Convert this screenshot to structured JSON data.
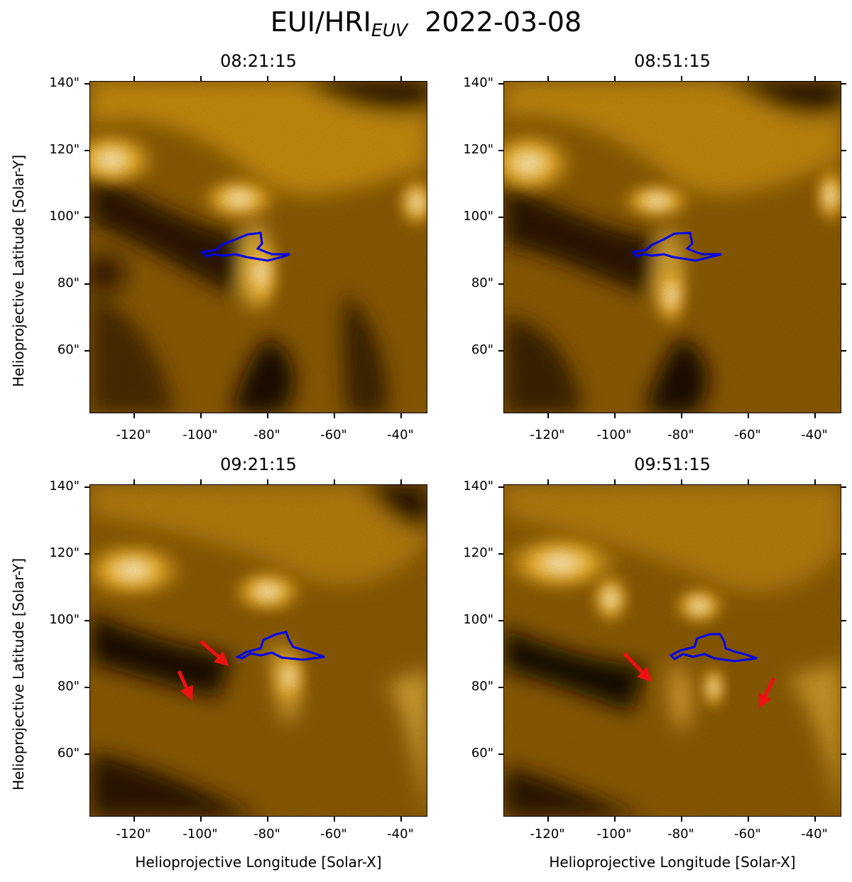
{
  "figure": {
    "title_main": "EUI/HRI",
    "title_sub": "EUV",
    "title_date": "2022-03-08",
    "xlabel": "Helioprojective Longitude [Solar-X]",
    "ylabel": "Helioprojective Latitude [Solar-Y]",
    "x_ticks": [
      "-120\"",
      "-100\"",
      "-80\"",
      "-60\"",
      "-40\""
    ],
    "y_ticks": [
      "140\"",
      "120\"",
      "100\"",
      "80\"",
      "60\""
    ],
    "x_range_arcsec": [
      -134,
      -33
    ],
    "y_range_arcsec": [
      41,
      141
    ]
  },
  "colors": {
    "contour": "#0000ee",
    "arrow": "#ee1111",
    "colormap_dark": "#1a0e00",
    "colormap_bright": "#fff3c0"
  },
  "panels": [
    {
      "time": "08:21:15",
      "arrows_shown": 0
    },
    {
      "time": "08:51:15",
      "arrows_shown": 0
    },
    {
      "time": "09:21:15",
      "arrows_shown": 2
    },
    {
      "time": "09:51:15",
      "arrows_shown": 2
    }
  ]
}
